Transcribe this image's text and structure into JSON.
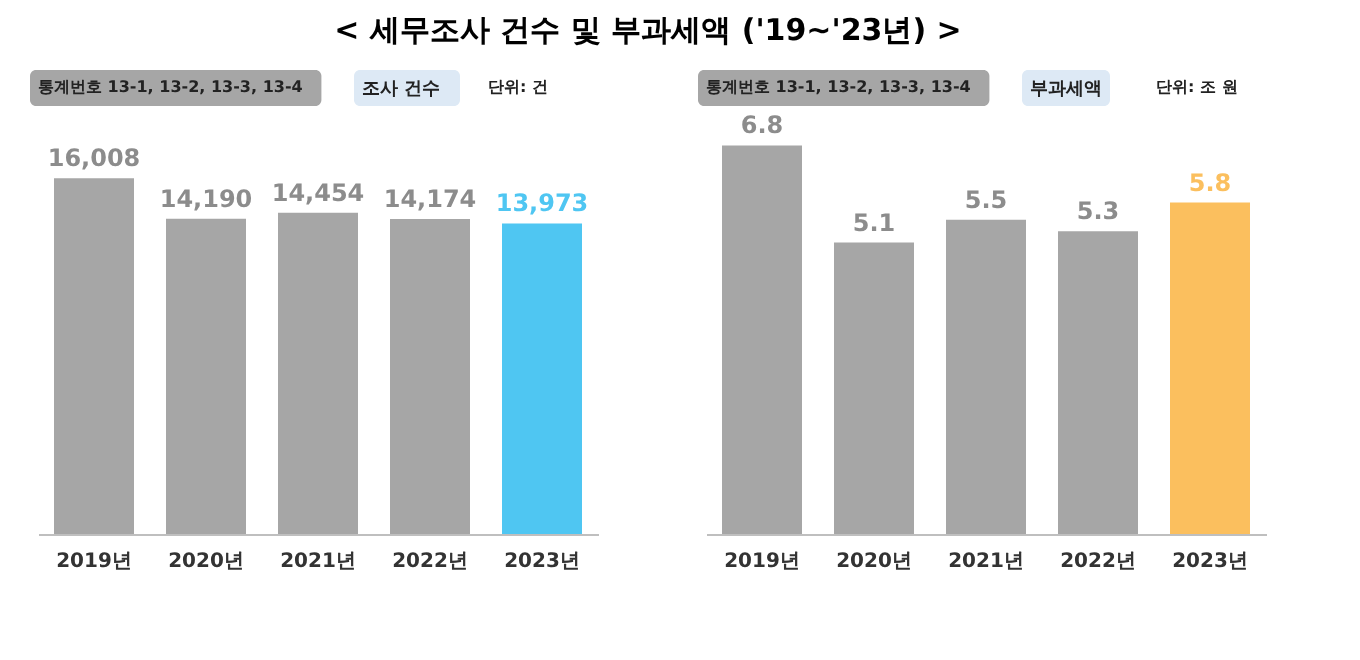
{
  "chart_data": [
    {
      "type": "bar",
      "title": "< 세무조사 건수 및 부과세액 ('19~'23년) >",
      "annotations": [
        "통계번호 13-1, 13-2, 13-3, 13-4",
        "조사 건수",
        "단위: 건"
      ],
      "categories": [
        "2019년",
        "2020년",
        "2021년",
        "2022년",
        "2023년"
      ],
      "values": [
        16008,
        14190,
        14454,
        14174,
        13973
      ],
      "value_labels": [
        "16,008",
        "14,190",
        "14,454",
        "14,174",
        "13,973"
      ],
      "colors": [
        "#a6a6a6",
        "#a6a6a6",
        "#a6a6a6",
        "#a6a6a6",
        "#4fc6f2"
      ]
    },
    {
      "type": "bar",
      "annotations": [
        "통계번호 13-1, 13-2, 13-3, 13-4",
        "부과세액",
        "단위: 조 원"
      ],
      "categories": [
        "2019년",
        "2020년",
        "2021년",
        "2022년",
        "2023년"
      ],
      "values": [
        6.8,
        5.1,
        5.5,
        5.3,
        5.8
      ],
      "data_labels": true,
      "colors": [
        "#a6a6a6",
        "#a6a6a6",
        "#a6a6a6",
        "#a6a6a6",
        "#fbbf5e"
      ]
    }
  ]
}
